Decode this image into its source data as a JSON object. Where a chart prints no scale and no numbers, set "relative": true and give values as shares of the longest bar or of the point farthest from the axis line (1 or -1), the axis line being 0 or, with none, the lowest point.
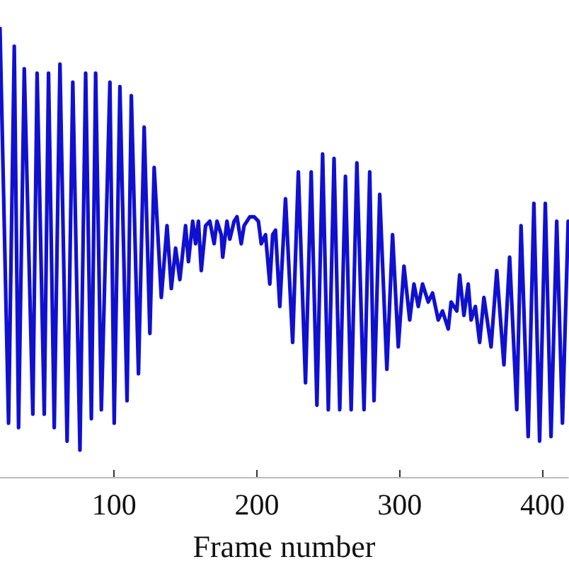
{
  "chart_data": {
    "type": "line",
    "xlabel": "Frame number",
    "relative": true,
    "color": "#1010d0",
    "xlim": [
      20,
      418
    ],
    "xticks": [
      100,
      200,
      300,
      400
    ],
    "x": [
      20,
      26,
      30,
      33,
      37,
      43,
      46,
      51,
      54,
      58,
      62,
      67,
      71,
      76,
      80,
      84,
      87,
      91,
      97,
      100,
      104,
      109,
      112,
      117,
      121,
      125,
      128,
      133,
      137,
      140,
      143,
      146,
      149,
      150,
      152,
      155,
      157,
      159,
      161,
      164,
      167,
      170,
      172,
      175,
      176,
      179,
      181,
      184,
      186,
      189,
      191,
      195,
      198,
      201,
      203,
      206,
      209,
      211,
      213,
      216,
      220,
      225,
      229,
      234,
      238,
      242,
      246,
      250,
      254,
      258,
      262,
      266,
      270,
      275,
      279,
      282,
      286,
      291,
      295,
      299,
      303,
      307,
      310,
      313,
      316,
      320,
      323,
      327,
      330,
      334,
      336,
      340,
      342,
      345,
      348,
      350,
      353,
      356,
      359,
      364,
      368,
      373,
      377,
      382,
      385,
      390,
      394,
      398,
      402,
      406,
      410,
      414,
      418
    ],
    "values": [
      1.0,
      0.12,
      0.96,
      0.11,
      0.91,
      0.14,
      0.9,
      0.14,
      0.9,
      0.11,
      0.92,
      0.08,
      0.88,
      0.06,
      0.9,
      0.13,
      0.9,
      0.15,
      0.88,
      0.12,
      0.87,
      0.17,
      0.85,
      0.23,
      0.78,
      0.32,
      0.69,
      0.4,
      0.56,
      0.42,
      0.51,
      0.44,
      0.53,
      0.56,
      0.48,
      0.57,
      0.52,
      0.57,
      0.46,
      0.56,
      0.57,
      0.52,
      0.57,
      0.54,
      0.49,
      0.57,
      0.53,
      0.57,
      0.58,
      0.52,
      0.56,
      0.58,
      0.58,
      0.57,
      0.52,
      0.54,
      0.43,
      0.54,
      0.55,
      0.38,
      0.62,
      0.3,
      0.68,
      0.21,
      0.68,
      0.16,
      0.72,
      0.15,
      0.71,
      0.15,
      0.67,
      0.15,
      0.7,
      0.15,
      0.68,
      0.17,
      0.63,
      0.24,
      0.54,
      0.29,
      0.47,
      0.35,
      0.43,
      0.38,
      0.43,
      0.39,
      0.41,
      0.35,
      0.37,
      0.33,
      0.39,
      0.37,
      0.45,
      0.36,
      0.43,
      0.35,
      0.38,
      0.3,
      0.4,
      0.29,
      0.46,
      0.25,
      0.49,
      0.15,
      0.56,
      0.09,
      0.61,
      0.08,
      0.61,
      0.09,
      0.57,
      0.12,
      0.57
    ]
  }
}
